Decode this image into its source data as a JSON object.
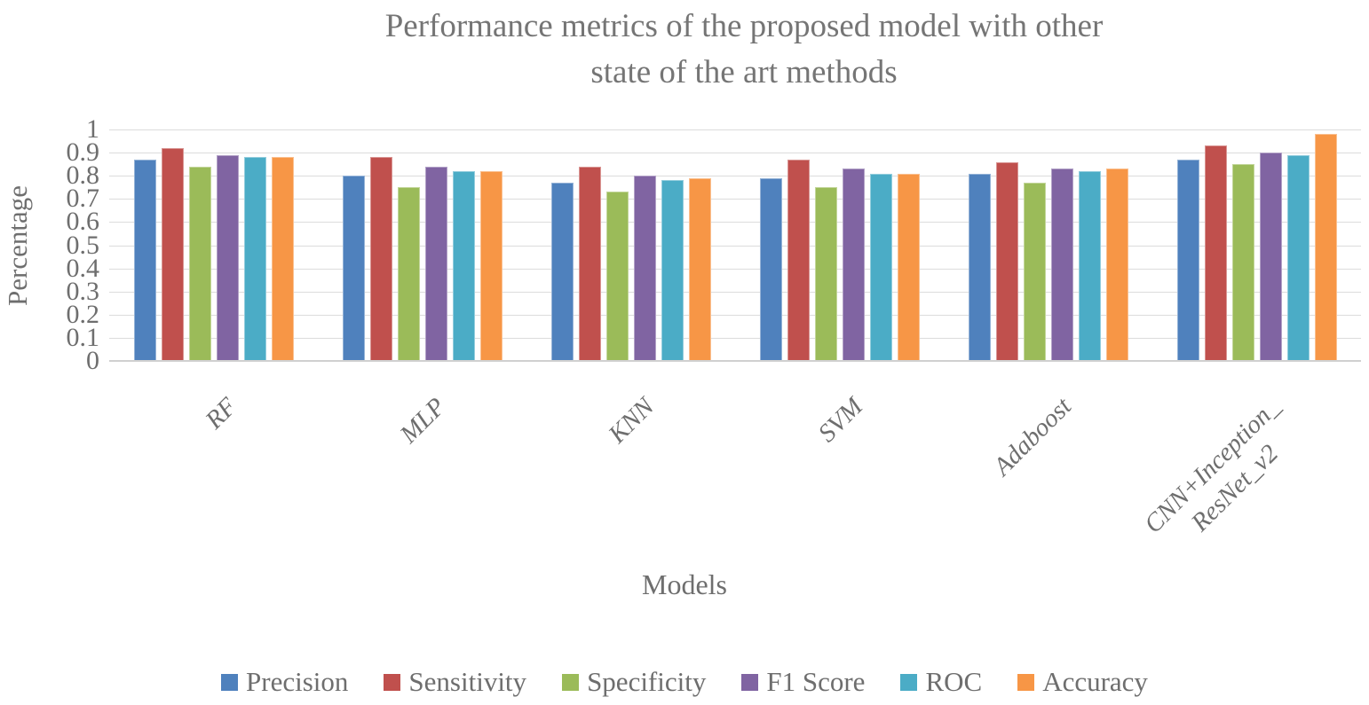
{
  "title_lines": [
    "Performance metrics of the proposed model with other",
    "state of the art methods"
  ],
  "colors": {
    "text": "#6E6E6E",
    "title_text": "#757575",
    "gridline": "#DCDCDC",
    "axis_line": "#D0D0D0",
    "background": "#FFFFFF"
  },
  "chart_data": {
    "type": "bar",
    "title": "Performance metrics of the proposed model with other state of the art methods",
    "xlabel": "Models",
    "ylabel": "Percentage",
    "ylim": [
      0,
      1
    ],
    "grid": true,
    "legend_position": "bottom",
    "yticks": [
      "1",
      "0.9",
      "0.8",
      "0.7",
      "0.6",
      "0.5",
      "0.4",
      "0.3",
      "0.2",
      "0.1",
      "0"
    ],
    "categories": [
      "RF",
      "MLP",
      "KNN",
      "SVM",
      "Adaboost",
      "CNN+Inception_\nResNet_v2"
    ],
    "series": [
      {
        "name": "Precision",
        "color": "#4F81BD",
        "values": [
          0.87,
          0.8,
          0.77,
          0.79,
          0.81,
          0.87
        ]
      },
      {
        "name": "Sensitivity",
        "color": "#C0504D",
        "values": [
          0.92,
          0.88,
          0.84,
          0.87,
          0.86,
          0.93
        ]
      },
      {
        "name": "Specificity",
        "color": "#9BBB59",
        "values": [
          0.84,
          0.75,
          0.73,
          0.75,
          0.77,
          0.85
        ]
      },
      {
        "name": "F1 Score",
        "color": "#8064A2",
        "values": [
          0.89,
          0.84,
          0.8,
          0.83,
          0.83,
          0.9
        ]
      },
      {
        "name": "ROC",
        "color": "#4BACC6",
        "values": [
          0.88,
          0.82,
          0.78,
          0.81,
          0.82,
          0.89
        ]
      },
      {
        "name": "Accuracy",
        "color": "#F79646",
        "values": [
          0.88,
          0.82,
          0.79,
          0.81,
          0.83,
          0.98
        ]
      }
    ]
  }
}
